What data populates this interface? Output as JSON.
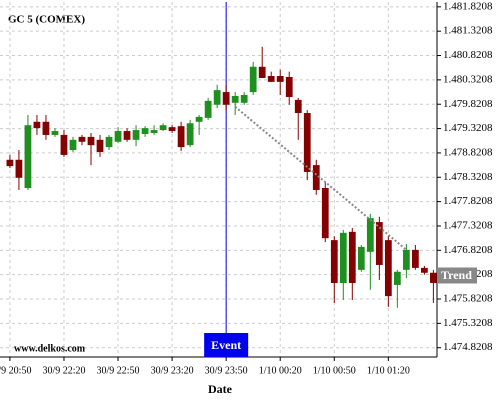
{
  "chart_data": {
    "type": "candlestick",
    "title": "GC 5 (COMEX)",
    "x_label": "Date",
    "watermark": "www.delkos.com",
    "categories": [
      "30/9 20:50",
      null,
      null,
      null,
      null,
      null,
      "30/9 22:20",
      null,
      null,
      null,
      null,
      null,
      "30/9 22:50",
      null,
      null,
      null,
      null,
      null,
      "30/9 23:20",
      null,
      null,
      null,
      null,
      null,
      "30/9 23:50",
      null,
      null,
      null,
      null,
      null,
      "1/10 00:20",
      null,
      null,
      null,
      null,
      null,
      "1/10 00:50",
      null,
      null,
      null,
      null,
      null,
      "1/10 01:20",
      null,
      null,
      null,
      null,
      null
    ],
    "open": [
      1478.68,
      1478.68,
      1478.1,
      1479.46,
      1479.46,
      1479.19,
      1479.19,
      1478.88,
      1479.15,
      1479.15,
      1479.09,
      1478.94,
      1479.05,
      1479.27,
      1479.09,
      1479.21,
      1479.23,
      1479.29,
      1479.35,
      1479.37,
      1478.98,
      1479.46,
      1479.54,
      1479.81,
      1480.07,
      1479.85,
      1479.85,
      1480.07,
      1480.59,
      1480.4,
      1480.4,
      1480.38,
      1479.91,
      1479.64,
      1478.57,
      1478.1,
      1477.03,
      1476.15,
      1477.2,
      1476.42,
      1476.79,
      1477.4,
      1477.03,
      1476.11,
      1476.42,
      1476.83,
      1476.46,
      1476.36
    ],
    "high": [
      1478.78,
      1478.88,
      1479.6,
      1479.6,
      1479.6,
      1479.33,
      1479.29,
      1479.15,
      1479.19,
      1479.23,
      1479.19,
      1479.19,
      1479.35,
      1479.33,
      1479.39,
      1479.37,
      1479.39,
      1479.43,
      1479.39,
      1479.46,
      1479.5,
      1479.6,
      1479.95,
      1480.22,
      1480.22,
      1480.07,
      1480.07,
      1480.69,
      1481.0,
      1480.49,
      1480.53,
      1480.49,
      1479.95,
      1479.7,
      1478.68,
      1478.22,
      1477.11,
      1477.24,
      1477.28,
      1476.93,
      1477.57,
      1477.51,
      1477.11,
      1476.42,
      1476.95,
      1476.93,
      1476.5,
      1476.42
    ],
    "low": [
      1478.51,
      1478.06,
      1478.06,
      1479.19,
      1479.09,
      1479.15,
      1478.74,
      1478.84,
      1478.98,
      1478.57,
      1478.74,
      1478.88,
      1479.02,
      1479.05,
      1478.96,
      1479.15,
      1479.19,
      1479.27,
      1479.23,
      1478.86,
      1478.94,
      1479.19,
      1479.5,
      1479.74,
      1479.7,
      1479.6,
      1479.81,
      1480.01,
      1480.36,
      1480.28,
      1480.01,
      1479.81,
      1479.09,
      1478.26,
      1477.96,
      1476.99,
      1475.74,
      1475.8,
      1475.8,
      1476.38,
      1476.01,
      1476.21,
      1475.66,
      1475.64,
      1476.25,
      1476.42,
      1476.32,
      1475.74
    ],
    "close": [
      1478.55,
      1478.31,
      1479.39,
      1479.33,
      1479.19,
      1479.27,
      1478.78,
      1479.09,
      1479.05,
      1478.98,
      1478.84,
      1479.15,
      1479.27,
      1479.09,
      1479.29,
      1479.33,
      1479.29,
      1479.39,
      1479.27,
      1478.94,
      1479.43,
      1479.56,
      1479.89,
      1480.11,
      1479.81,
      1479.99,
      1480.01,
      1480.59,
      1480.36,
      1480.28,
      1480.28,
      1479.97,
      1479.64,
      1478.43,
      1478.06,
      1477.07,
      1476.15,
      1477.18,
      1476.15,
      1476.89,
      1477.48,
      1476.52,
      1475.88,
      1476.38,
      1476.83,
      1476.46,
      1476.36,
      1476.15
    ],
    "up_color": "#1f8f1f",
    "down_color": "#850000",
    "xlim": [
      -1.1,
      47.4
    ],
    "ylim": [
      1474.63,
      1481.92
    ],
    "yticks": [
      {
        "value": 1474.8208,
        "label": "1.474.8208"
      },
      {
        "value": 1475.3208,
        "label": "1.475.3208"
      },
      {
        "value": 1475.8208,
        "label": "1.475.8208"
      },
      {
        "value": 1476.3208,
        "label": "1.476.3208"
      },
      {
        "value": 1476.8208,
        "label": "1.476.8208"
      },
      {
        "value": 1477.3208,
        "label": "1.477.3208"
      },
      {
        "value": 1477.8208,
        "label": "1.477.8208"
      },
      {
        "value": 1478.3208,
        "label": "1.478.3208"
      },
      {
        "value": 1478.8208,
        "label": "1.478.8208"
      },
      {
        "value": 1479.3208,
        "label": "1.479.3208"
      },
      {
        "value": 1479.8208,
        "label": "1.479.8208"
      },
      {
        "value": 1480.3208,
        "label": "1.480.3208"
      },
      {
        "value": 1480.8208,
        "label": "1.480.8208"
      },
      {
        "value": 1481.3208,
        "label": "1.481.3208"
      },
      {
        "value": 1481.8208,
        "label": "1.481.8208"
      }
    ],
    "grid": true,
    "event": {
      "index": 24,
      "label": "Event",
      "color": "#0000ee"
    },
    "trend": {
      "label": "Trend",
      "x": [
        25,
        44
      ],
      "values": [
        1479.77,
        1476.83
      ],
      "color": "#888888"
    }
  }
}
